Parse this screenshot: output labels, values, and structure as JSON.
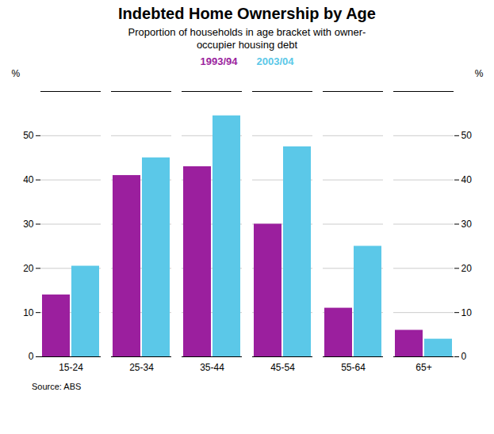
{
  "chart_data": {
    "type": "bar",
    "title": "Indebted Home Ownership by Age",
    "subtitle": "Proportion of households in age bracket with owner-\noccupier housing debt",
    "source": "Source: ABS",
    "ylabel": "%",
    "y2label": "%",
    "categories": [
      "15-24",
      "25-34",
      "35-44",
      "45-54",
      "55-64",
      "65+"
    ],
    "series": [
      {
        "name": "1993/94",
        "color": "#9B1F9E",
        "values": [
          14,
          41,
          43,
          30,
          11,
          6
        ]
      },
      {
        "name": "2003/04",
        "color": "#5BC8E8",
        "values": [
          20.5,
          45,
          54.5,
          47.5,
          25,
          4
        ]
      }
    ],
    "ylim": [
      0,
      60
    ],
    "yticks": [
      0,
      10,
      20,
      30,
      40,
      50
    ],
    "y2lim": [
      0,
      60
    ],
    "y2ticks": [
      0,
      10,
      20,
      30,
      40,
      50
    ],
    "grid": true
  }
}
